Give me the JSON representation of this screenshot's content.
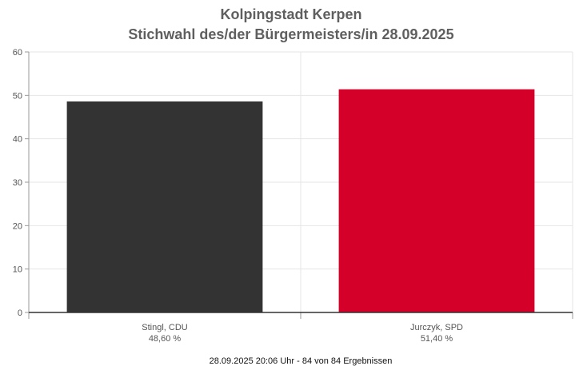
{
  "chart_data": {
    "type": "bar",
    "title": "Kolpingstadt Kerpen",
    "subtitle": "Stichwahl des/der Bürgermeisters/in 28.09.2025",
    "categories": [
      "Stingl, CDU",
      "Jurczyk, SPD"
    ],
    "values": [
      48.6,
      51.4
    ],
    "value_labels": [
      "48,60 %",
      "51,40 %"
    ],
    "colors": [
      "#333333",
      "#d4002a"
    ],
    "ylim": [
      0,
      60
    ],
    "yticks": [
      "0",
      "10",
      "20",
      "30",
      "40",
      "50",
      "60"
    ],
    "xlabel": "",
    "ylabel": "",
    "grid": true,
    "legend": "none"
  },
  "footer": "28.09.2025 20:06 Uhr - 84 von 84 Ergebnissen"
}
